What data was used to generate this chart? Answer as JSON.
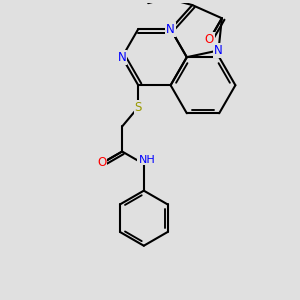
{
  "bg_color": "#e0e0e0",
  "bond_color": "#000000",
  "bond_width": 1.5,
  "N_color": "#0000ff",
  "O_color": "#ff0000",
  "S_color": "#999900",
  "H_color": "#00aaaa",
  "font_size": 8.5,
  "fig_size": [
    3.0,
    3.0
  ],
  "dpi": 100,
  "xlim": [
    0,
    10
  ],
  "ylim": [
    0,
    10
  ]
}
